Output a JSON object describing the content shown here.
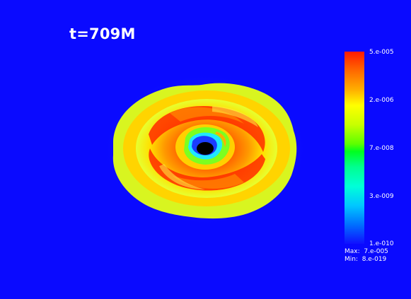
{
  "time_label": "t=709M",
  "colorbar": {
    "ticks": [
      "5.e-005",
      "2.e-006",
      "7.e-008",
      "3.e-009",
      "1.e-010"
    ],
    "max_text": "Max:  7.e-005",
    "min_text": "Min:  8.e-019",
    "colormap": [
      "#ff1a00",
      "#ffff00",
      "#00ff20",
      "#00ffd8",
      "#1010ff"
    ]
  },
  "colors": {
    "background": "#0a0aff",
    "hole": "#000000"
  }
}
